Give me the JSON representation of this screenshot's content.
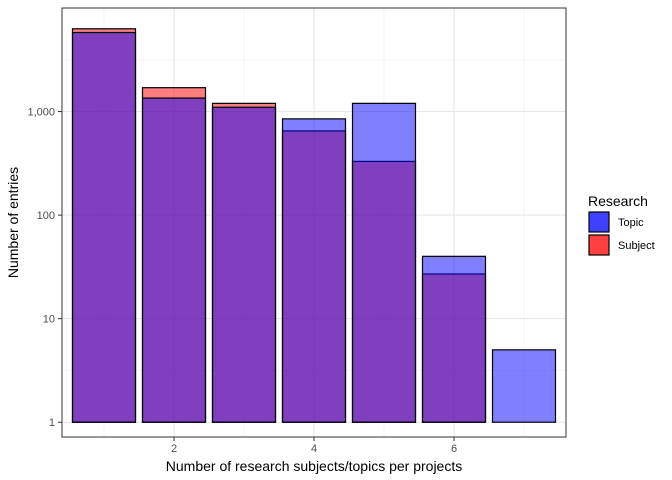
{
  "chart_data": {
    "type": "bar",
    "xlabel": "Number of research subjects/topics per projects",
    "ylabel": "Number of entries",
    "y_scale": "log10",
    "ylim": [
      0.72,
      10000
    ],
    "xlim": [
      0.4,
      7.6
    ],
    "x_ticks": [
      2,
      4,
      6
    ],
    "y_ticks": [
      1,
      10,
      100,
      1000
    ],
    "y_tick_labels": [
      "1",
      "10",
      "100",
      "1,000"
    ],
    "grid": true,
    "legend": {
      "title": "Research",
      "position": "right"
    },
    "bar_width": 0.9,
    "series": [
      {
        "name": "Subject",
        "color": "#ff0000",
        "x": [
          1,
          2,
          3,
          4,
          5,
          6
        ],
        "values": [
          6300,
          1700,
          1200,
          650,
          330,
          27
        ]
      },
      {
        "name": "Topic",
        "color": "#0000ff",
        "x": [
          1,
          2,
          3,
          4,
          5,
          6,
          7
        ],
        "values": [
          5800,
          1350,
          1100,
          850,
          1200,
          40,
          5
        ]
      }
    ],
    "legend_order": [
      "Topic",
      "Subject"
    ]
  }
}
